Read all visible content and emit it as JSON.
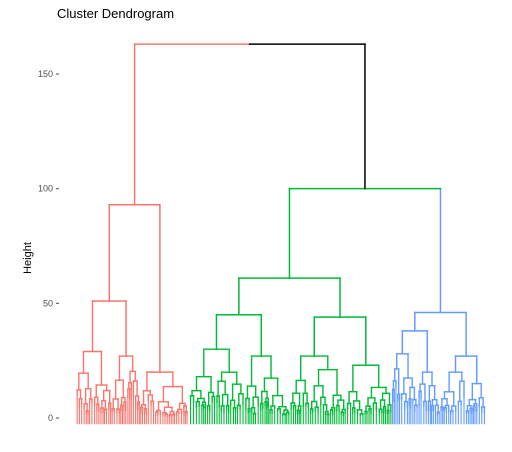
{
  "chart_data": {
    "type": "dendrogram",
    "title": "Cluster Dendrogram",
    "xlabel": "",
    "ylabel": "Height",
    "ylim": [
      -5,
      165
    ],
    "yticks": [
      0,
      50,
      100,
      150
    ],
    "grid": false,
    "root_height": 163,
    "clusters": [
      {
        "color": "#F8766D",
        "merge_height": 163,
        "sub_merges": [
          93,
          51,
          29,
          27,
          20,
          18
        ],
        "leaf_count": 60
      },
      {
        "color": "#00BA38",
        "merge_height": 100,
        "sub_merges": [
          61,
          45,
          44,
          30,
          27,
          23
        ],
        "leaf_count": 110
      },
      {
        "color": "#619CFF",
        "merge_height": 46,
        "sub_merges": [
          38,
          28,
          27,
          20,
          15
        ],
        "leaf_count": 50
      }
    ],
    "joins": [
      {
        "height": 100,
        "color": "#00BA38",
        "joins": [
          "cluster_2",
          "cluster_3"
        ]
      },
      {
        "height": 163,
        "color": "#000000",
        "joins": [
          "cluster_1",
          "cluster_2+3"
        ]
      }
    ]
  }
}
